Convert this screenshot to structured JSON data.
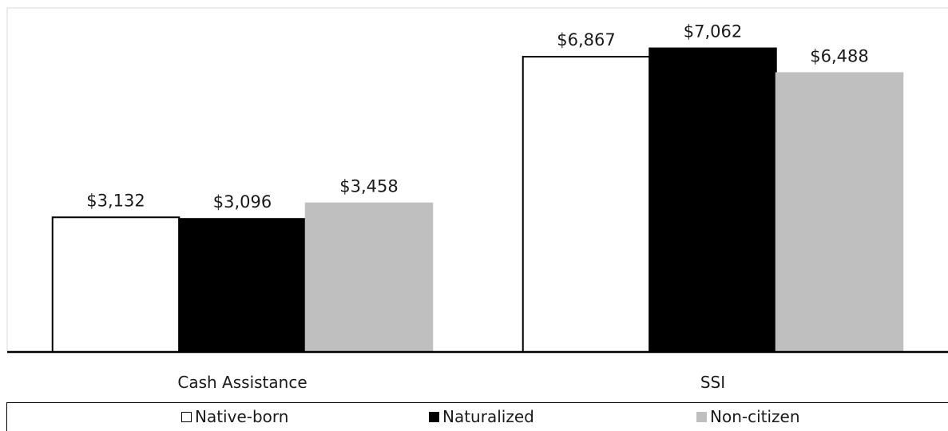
{
  "chart_data": {
    "type": "bar",
    "categories": [
      "Cash Assistance",
      "SSI"
    ],
    "series": [
      {
        "name": "Native-born",
        "values": [
          3132,
          6867
        ],
        "labels": [
          "$3,132",
          "$6,867"
        ],
        "color": "#ffffff",
        "stroke": "#000000"
      },
      {
        "name": "Naturalized",
        "values": [
          3096,
          7062
        ],
        "labels": [
          "$3,096",
          "$7,062"
        ],
        "color": "#000000",
        "stroke": "#000000"
      },
      {
        "name": "Non-citizen",
        "values": [
          3458,
          6488
        ],
        "labels": [
          "$3,458",
          "$6,488"
        ],
        "color": "#bfbfbf",
        "stroke": "#bfbfbf"
      }
    ],
    "title": "",
    "xlabel": "",
    "ylabel": "",
    "ylim": [
      0,
      8000
    ],
    "grid": false,
    "legend_position": "bottom"
  }
}
